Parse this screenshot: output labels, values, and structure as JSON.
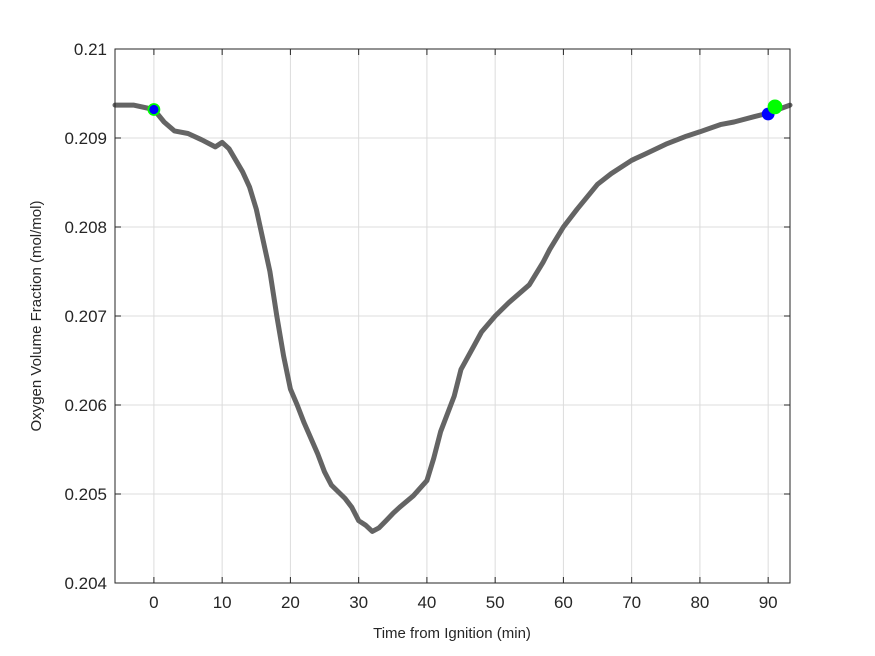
{
  "chart_data": {
    "type": "line",
    "title": "",
    "xlabel": "Time from Ignition (min)",
    "ylabel": "Oxygen Volume Fraction (mol/mol)",
    "xlim": [
      -5.7,
      93.2
    ],
    "ylim": [
      0.204,
      0.21
    ],
    "grid": true,
    "legend": null,
    "x_ticks": [
      0,
      10,
      20,
      30,
      40,
      50,
      60,
      70,
      80,
      90
    ],
    "x_tick_labels": [
      "0",
      "10",
      "20",
      "30",
      "40",
      "50",
      "60",
      "70",
      "80",
      "90"
    ],
    "y_ticks": [
      0.204,
      0.205,
      0.206,
      0.207,
      0.208,
      0.209,
      0.21
    ],
    "y_tick_labels": [
      "0.204",
      "0.205",
      "0.206",
      "0.207",
      "0.208",
      "0.209",
      "0.21"
    ],
    "series": [
      {
        "name": "Oxygen volume fraction",
        "color": "#646464",
        "style": "thick noisy line (dense markers)",
        "x": [
          -5.7,
          -3,
          0,
          1.5,
          3,
          5,
          7,
          9,
          10,
          11,
          13,
          14,
          15,
          16,
          17,
          18,
          19,
          20,
          21,
          22,
          24,
          25,
          26,
          28,
          29,
          30,
          31,
          32,
          33,
          34,
          35,
          36,
          38,
          40,
          41,
          42,
          44,
          45,
          47,
          48,
          50,
          52,
          55,
          57,
          58,
          60,
          62,
          65,
          67,
          70,
          72,
          75,
          78,
          80,
          83,
          85,
          88,
          90,
          93.2
        ],
        "y": [
          0.20937,
          0.20937,
          0.20932,
          0.20918,
          0.20908,
          0.20905,
          0.20898,
          0.2089,
          0.20895,
          0.20888,
          0.20862,
          0.20845,
          0.2082,
          0.20785,
          0.2075,
          0.207,
          0.20655,
          0.20618,
          0.206,
          0.2058,
          0.20545,
          0.20525,
          0.2051,
          0.20495,
          0.20485,
          0.2047,
          0.20465,
          0.20458,
          0.20462,
          0.2047,
          0.20478,
          0.20485,
          0.20498,
          0.20515,
          0.2054,
          0.2057,
          0.2061,
          0.2064,
          0.20668,
          0.20682,
          0.207,
          0.20715,
          0.20735,
          0.2076,
          0.20775,
          0.208,
          0.2082,
          0.20848,
          0.2086,
          0.20875,
          0.20882,
          0.20893,
          0.20902,
          0.20907,
          0.20915,
          0.20918,
          0.20924,
          0.20928,
          0.20937
        ]
      }
    ],
    "markers": [
      {
        "name": "start-marker",
        "x": 0,
        "y": 0.20932,
        "fill": "#0000ff",
        "edge": "#00ff00"
      },
      {
        "name": "end-marker-blue",
        "x": 90,
        "y": 0.20927,
        "fill": "#0000ff",
        "edge": "#0000ff"
      },
      {
        "name": "end-marker-green",
        "x": 91,
        "y": 0.20935,
        "fill": "#00ff00",
        "edge": "#00ff00"
      }
    ]
  },
  "axes": {
    "xlabel": "Time from Ignition (min)",
    "ylabel": "Oxygen Volume Fraction (mol/mol)"
  },
  "colors": {
    "line": "#646464",
    "grid": "#dcdcdc",
    "axis": "#262626",
    "marker_blue": "#0000ff",
    "marker_green": "#00ff00"
  }
}
